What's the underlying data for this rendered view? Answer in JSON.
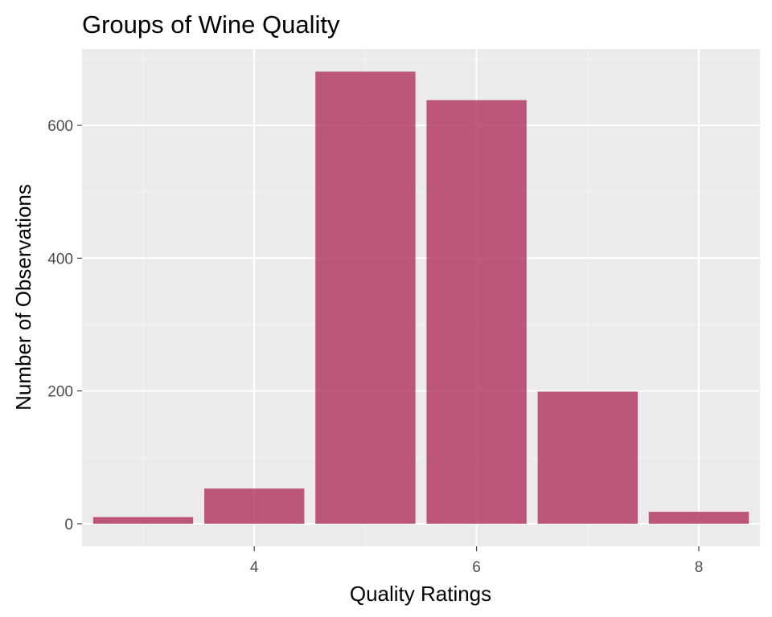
{
  "chart_data": {
    "type": "bar",
    "title": "Groups of Wine Quality",
    "xlabel": "Quality Ratings",
    "ylabel": "Number of Observations",
    "x": [
      3,
      4,
      5,
      6,
      7,
      8
    ],
    "values": [
      10,
      53,
      681,
      638,
      199,
      18
    ],
    "xlim": [
      2.45,
      8.55
    ],
    "ylim": [
      -34,
      715
    ],
    "x_ticks": [
      4,
      6,
      8
    ],
    "x_tick_labels": [
      "4",
      "6",
      "8"
    ],
    "y_ticks": [
      0,
      200,
      400,
      600
    ],
    "y_tick_labels": [
      "0",
      "200",
      "400",
      "600"
    ],
    "grid": true,
    "legend": "none",
    "colors": {
      "bar": "#b0325f",
      "panel_background": "#ebebeb",
      "grid_major": "#ffffff",
      "grid_minor": "#f5f5f5"
    }
  }
}
